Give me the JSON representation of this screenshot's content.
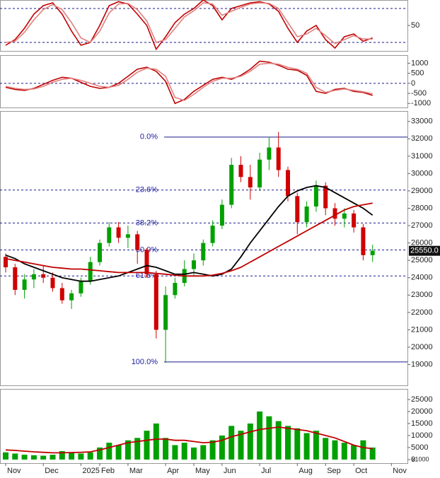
{
  "chart_data": [
    {
      "type": "line",
      "ylim": [
        5,
        95
      ],
      "yticks": [
        50
      ],
      "levels": [
        20,
        80
      ],
      "series": [
        {
          "color": "#c00000",
          "values": [
            15,
            25,
            45,
            70,
            85,
            90,
            70,
            40,
            15,
            20,
            50,
            85,
            92,
            88,
            70,
            50,
            8,
            30,
            55,
            70,
            80,
            95,
            85,
            60,
            80,
            85,
            90,
            92,
            88,
            75,
            45,
            20,
            40,
            50,
            25,
            10,
            30,
            35,
            22,
            28,
            null,
            null
          ]
        },
        {
          "color": "#e08080",
          "values": [
            20,
            22,
            38,
            60,
            78,
            87,
            78,
            55,
            28,
            20,
            40,
            72,
            88,
            89,
            78,
            58,
            20,
            25,
            45,
            65,
            76,
            90,
            88,
            68,
            75,
            82,
            88,
            90,
            89,
            80,
            55,
            30,
            35,
            45,
            32,
            18,
            25,
            32,
            26,
            26,
            null,
            null
          ]
        }
      ]
    },
    {
      "type": "line",
      "ylim": [
        -1200,
        1400
      ],
      "yticks": [
        -1000,
        -500,
        0,
        500,
        1000
      ],
      "levels": [
        0
      ],
      "series": [
        {
          "color": "#c00000",
          "values": [
            -200,
            -300,
            -350,
            -250,
            -50,
            150,
            300,
            250,
            50,
            -150,
            -250,
            -200,
            0,
            350,
            700,
            800,
            600,
            100,
            -1000,
            -800,
            -400,
            -100,
            200,
            300,
            200,
            400,
            700,
            1100,
            1050,
            900,
            700,
            650,
            400,
            -400,
            -500,
            -300,
            -250,
            -400,
            -450,
            -600,
            null,
            null
          ]
        },
        {
          "color": "#e08080",
          "values": [
            -150,
            -250,
            -300,
            -280,
            -150,
            50,
            200,
            250,
            150,
            0,
            -150,
            -200,
            -100,
            200,
            550,
            750,
            700,
            350,
            -700,
            -850,
            -550,
            -200,
            100,
            250,
            250,
            350,
            600,
            950,
            1000,
            950,
            800,
            700,
            500,
            -200,
            -450,
            -350,
            -280,
            -350,
            -420,
            -520,
            null,
            null
          ]
        }
      ]
    },
    {
      "type": "candlestick",
      "ylim": [
        17800,
        33600
      ],
      "yticks": [
        19000,
        20000,
        21000,
        22000,
        23000,
        24000,
        25000,
        26000,
        27000,
        28000,
        29000,
        30000,
        31000,
        32000,
        33000
      ],
      "up_color": "#00a000",
      "down_color": "#d00000",
      "open": [
        25200,
        24600,
        23300,
        23900,
        24200,
        24000,
        23400,
        22700,
        23100,
        23800,
        24900,
        26000,
        26900,
        26300,
        26500,
        25600,
        24200,
        21000,
        23000,
        23700,
        24500,
        25000,
        26000,
        27000,
        28200,
        30500,
        29800,
        29200,
        30800,
        31500,
        30200,
        28700,
        27200,
        28100,
        29300,
        28000,
        27400,
        27700,
        26900,
        25300,
        null,
        null
      ],
      "high": [
        25400,
        24800,
        24200,
        24500,
        24700,
        24300,
        23700,
        23300,
        24000,
        25200,
        26200,
        27200,
        27200,
        27000,
        26700,
        25700,
        24400,
        23500,
        24000,
        25000,
        25400,
        26200,
        27300,
        28500,
        30900,
        31000,
        30500,
        31200,
        32100,
        32400,
        30400,
        28900,
        28400,
        29600,
        29500,
        28300,
        28000,
        27900,
        27100,
        25900,
        null,
        null
      ],
      "low": [
        24300,
        23000,
        22800,
        23400,
        23700,
        23200,
        22500,
        22200,
        22900,
        23600,
        24700,
        25800,
        26000,
        25700,
        24800,
        24000,
        20500,
        19100,
        22800,
        23500,
        24100,
        24700,
        25800,
        26800,
        28000,
        29500,
        28500,
        29000,
        30200,
        29800,
        28400,
        26500,
        26900,
        27800,
        27600,
        27000,
        26900,
        26600,
        25000,
        24900,
        null,
        null
      ],
      "close": [
        24600,
        23300,
        23900,
        24200,
        24000,
        23400,
        22700,
        23100,
        23800,
        24900,
        26000,
        26900,
        26300,
        26500,
        25600,
        24200,
        21000,
        23000,
        23700,
        24500,
        25000,
        26000,
        27000,
        28200,
        30500,
        29800,
        29200,
        30800,
        31500,
        30200,
        28700,
        27200,
        28100,
        29300,
        28000,
        27400,
        27700,
        26900,
        25300,
        25550,
        null,
        null
      ],
      "series": [
        {
          "color": "#000000",
          "values": [
            25300,
            25100,
            24800,
            24600,
            24400,
            24200,
            24000,
            23900,
            23800,
            23800,
            23900,
            24000,
            24100,
            24300,
            24500,
            24700,
            24600,
            24400,
            24200,
            24200,
            24300,
            24200,
            24100,
            24200,
            24500,
            25200,
            26000,
            26700,
            27400,
            28100,
            28700,
            29000,
            29200,
            29300,
            29200,
            28900,
            28600,
            28300,
            28000,
            27600,
            null,
            null
          ]
        },
        {
          "color": "#c00000",
          "values": [
            25100,
            25000,
            24900,
            24800,
            24700,
            24600,
            24550,
            24500,
            24500,
            24450,
            24400,
            24350,
            24300,
            24300,
            24300,
            24300,
            24250,
            24200,
            24150,
            24100,
            24100,
            24100,
            24150,
            24250,
            24400,
            24600,
            24900,
            25200,
            25500,
            25800,
            26100,
            26400,
            26700,
            27000,
            27300,
            27600,
            27900,
            28100,
            28200,
            28300,
            null,
            null
          ]
        }
      ],
      "fib_levels": [
        {
          "label": "0.0%",
          "value": 32100
        },
        {
          "label": "23.6%",
          "value": 29050
        },
        {
          "label": "38.2%",
          "value": 27150
        },
        {
          "label": "50.0%",
          "value": 25600
        },
        {
          "label": "61.8%",
          "value": 24100
        },
        {
          "label": "100.0%",
          "value": 19150
        }
      ],
      "price_tag": {
        "value": 25550,
        "label": "25550.0"
      }
    },
    {
      "type": "bar",
      "ylim": [
        -1500,
        29400
      ],
      "yticks": [
        0,
        5000,
        10000,
        15000,
        20000,
        25000
      ],
      "unit_label": "x1000",
      "color": "#00a000",
      "values": [
        3000,
        2500,
        2000,
        1800,
        1600,
        2000,
        3500,
        2800,
        2500,
        3000,
        5000,
        7000,
        6000,
        8000,
        9000,
        12000,
        15000,
        9000,
        6000,
        7000,
        5000,
        6000,
        8000,
        10000,
        14000,
        12000,
        15000,
        20000,
        18000,
        16000,
        14000,
        13000,
        11000,
        12000,
        9000,
        8000,
        7000,
        6000,
        8000,
        5000,
        null,
        null
      ],
      "series": [
        {
          "color": "#c00000",
          "values": [
            4000,
            3800,
            3500,
            3200,
            3000,
            2800,
            2800,
            2900,
            3000,
            3200,
            4000,
            5000,
            6000,
            7000,
            7500,
            8000,
            8500,
            8500,
            8000,
            8000,
            7500,
            7000,
            7200,
            8000,
            9500,
            10500,
            11500,
            12500,
            13000,
            13500,
            13000,
            12500,
            12000,
            11000,
            10000,
            9000,
            7500,
            6000,
            5000,
            4500,
            null,
            null
          ]
        }
      ],
      "categories": [
        "Nov",
        null,
        null,
        null,
        "Dec",
        null,
        null,
        null,
        "2025",
        null,
        "Feb",
        null,
        null,
        "Mar",
        null,
        null,
        null,
        "Apr",
        null,
        null,
        "May",
        null,
        null,
        "Jun",
        null,
        null,
        null,
        "Jul",
        null,
        null,
        null,
        "Aug",
        null,
        null,
        "Sep",
        null,
        null,
        "Oct",
        null,
        null,
        null,
        "Nov"
      ]
    }
  ]
}
